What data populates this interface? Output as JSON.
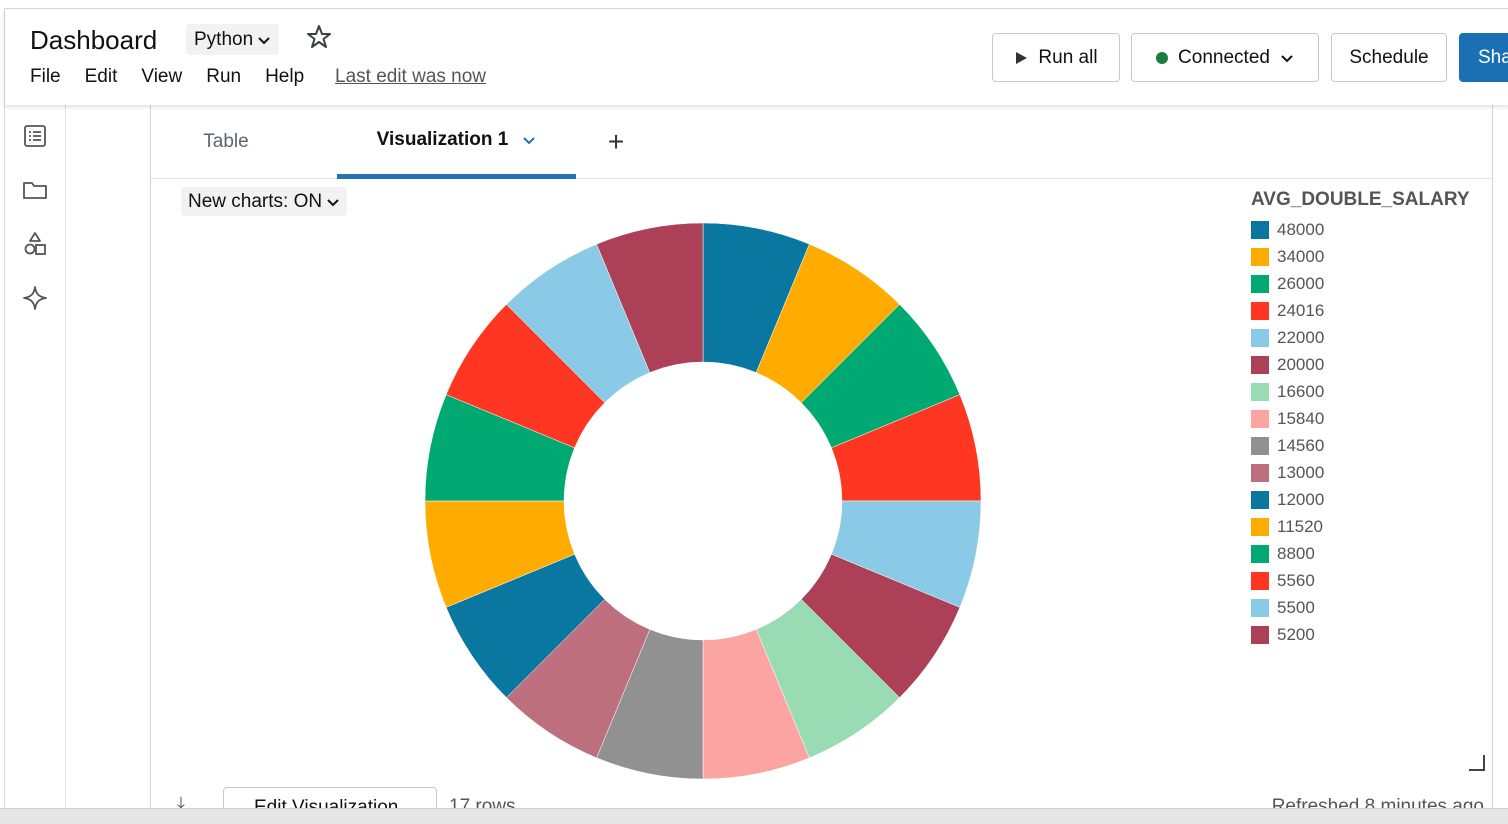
{
  "header": {
    "title": "Dashboard",
    "language": "Python",
    "menu": [
      "File",
      "Edit",
      "View",
      "Run",
      "Help"
    ],
    "last_edit": "Last edit was now",
    "run_all_label": "Run all",
    "connection_label": "Connected",
    "connection_color": "#1e7d3a",
    "schedule_label": "Schedule",
    "share_label": "Sha"
  },
  "sidebar": {
    "icons": [
      "notebook-outline-icon",
      "folder-icon",
      "shapes-icon",
      "sparkle-icon"
    ]
  },
  "tabs": {
    "table": "Table",
    "visualization": "Visualization 1",
    "add": "+"
  },
  "new_charts_label": "New charts: ON",
  "footer": {
    "edit_visualization": "Edit Visualization",
    "rows": "17 rows",
    "refreshed": "Refreshed 8 minutes ago"
  },
  "chart_data": {
    "type": "pie",
    "donut": true,
    "legend_title": "AVG_DOUBLE_SALARY",
    "legend_position": "top-right",
    "categories": [
      "48000",
      "34000",
      "26000",
      "24016",
      "22000",
      "20000",
      "16600",
      "15840",
      "14560",
      "13000",
      "12000",
      "11520",
      "8800",
      "5560",
      "5500",
      "5200"
    ],
    "legend_colors": [
      "#0a77a0",
      "#ffab00",
      "#00a972",
      "#ff3621",
      "#8bcae7",
      "#ab4057",
      "#99dcb3",
      "#fca4a1",
      "#919191",
      "#be6f7e",
      "#0a77a0",
      "#ffab00",
      "#00a972",
      "#ff3621",
      "#8bcae7",
      "#ab4057"
    ],
    "slices": [
      {
        "label": "48000",
        "value": 1,
        "color": "#0a77a0"
      },
      {
        "label": "34000",
        "value": 1,
        "color": "#ffab00"
      },
      {
        "label": "26000",
        "value": 1,
        "color": "#00a972"
      },
      {
        "label": "24016",
        "value": 1,
        "color": "#ff3621"
      },
      {
        "label": "22000",
        "value": 1,
        "color": "#8bcae7"
      },
      {
        "label": "20000",
        "value": 1,
        "color": "#ab4057"
      },
      {
        "label": "16600",
        "value": 1,
        "color": "#99dcb3"
      },
      {
        "label": "15840",
        "value": 1,
        "color": "#fca4a1"
      },
      {
        "label": "14560",
        "value": 1,
        "color": "#919191"
      },
      {
        "label": "13000",
        "value": 1,
        "color": "#be6f7e"
      },
      {
        "label": "12000",
        "value": 1,
        "color": "#0a77a0"
      },
      {
        "label": "11520",
        "value": 1,
        "color": "#ffab00"
      },
      {
        "label": "8800",
        "value": 1,
        "color": "#00a972"
      },
      {
        "label": "5560",
        "value": 1,
        "color": "#ff3621"
      },
      {
        "label": "5500",
        "value": 1,
        "color": "#8bcae7"
      },
      {
        "label": "5200",
        "value": 1,
        "color": "#ab4057"
      }
    ]
  }
}
